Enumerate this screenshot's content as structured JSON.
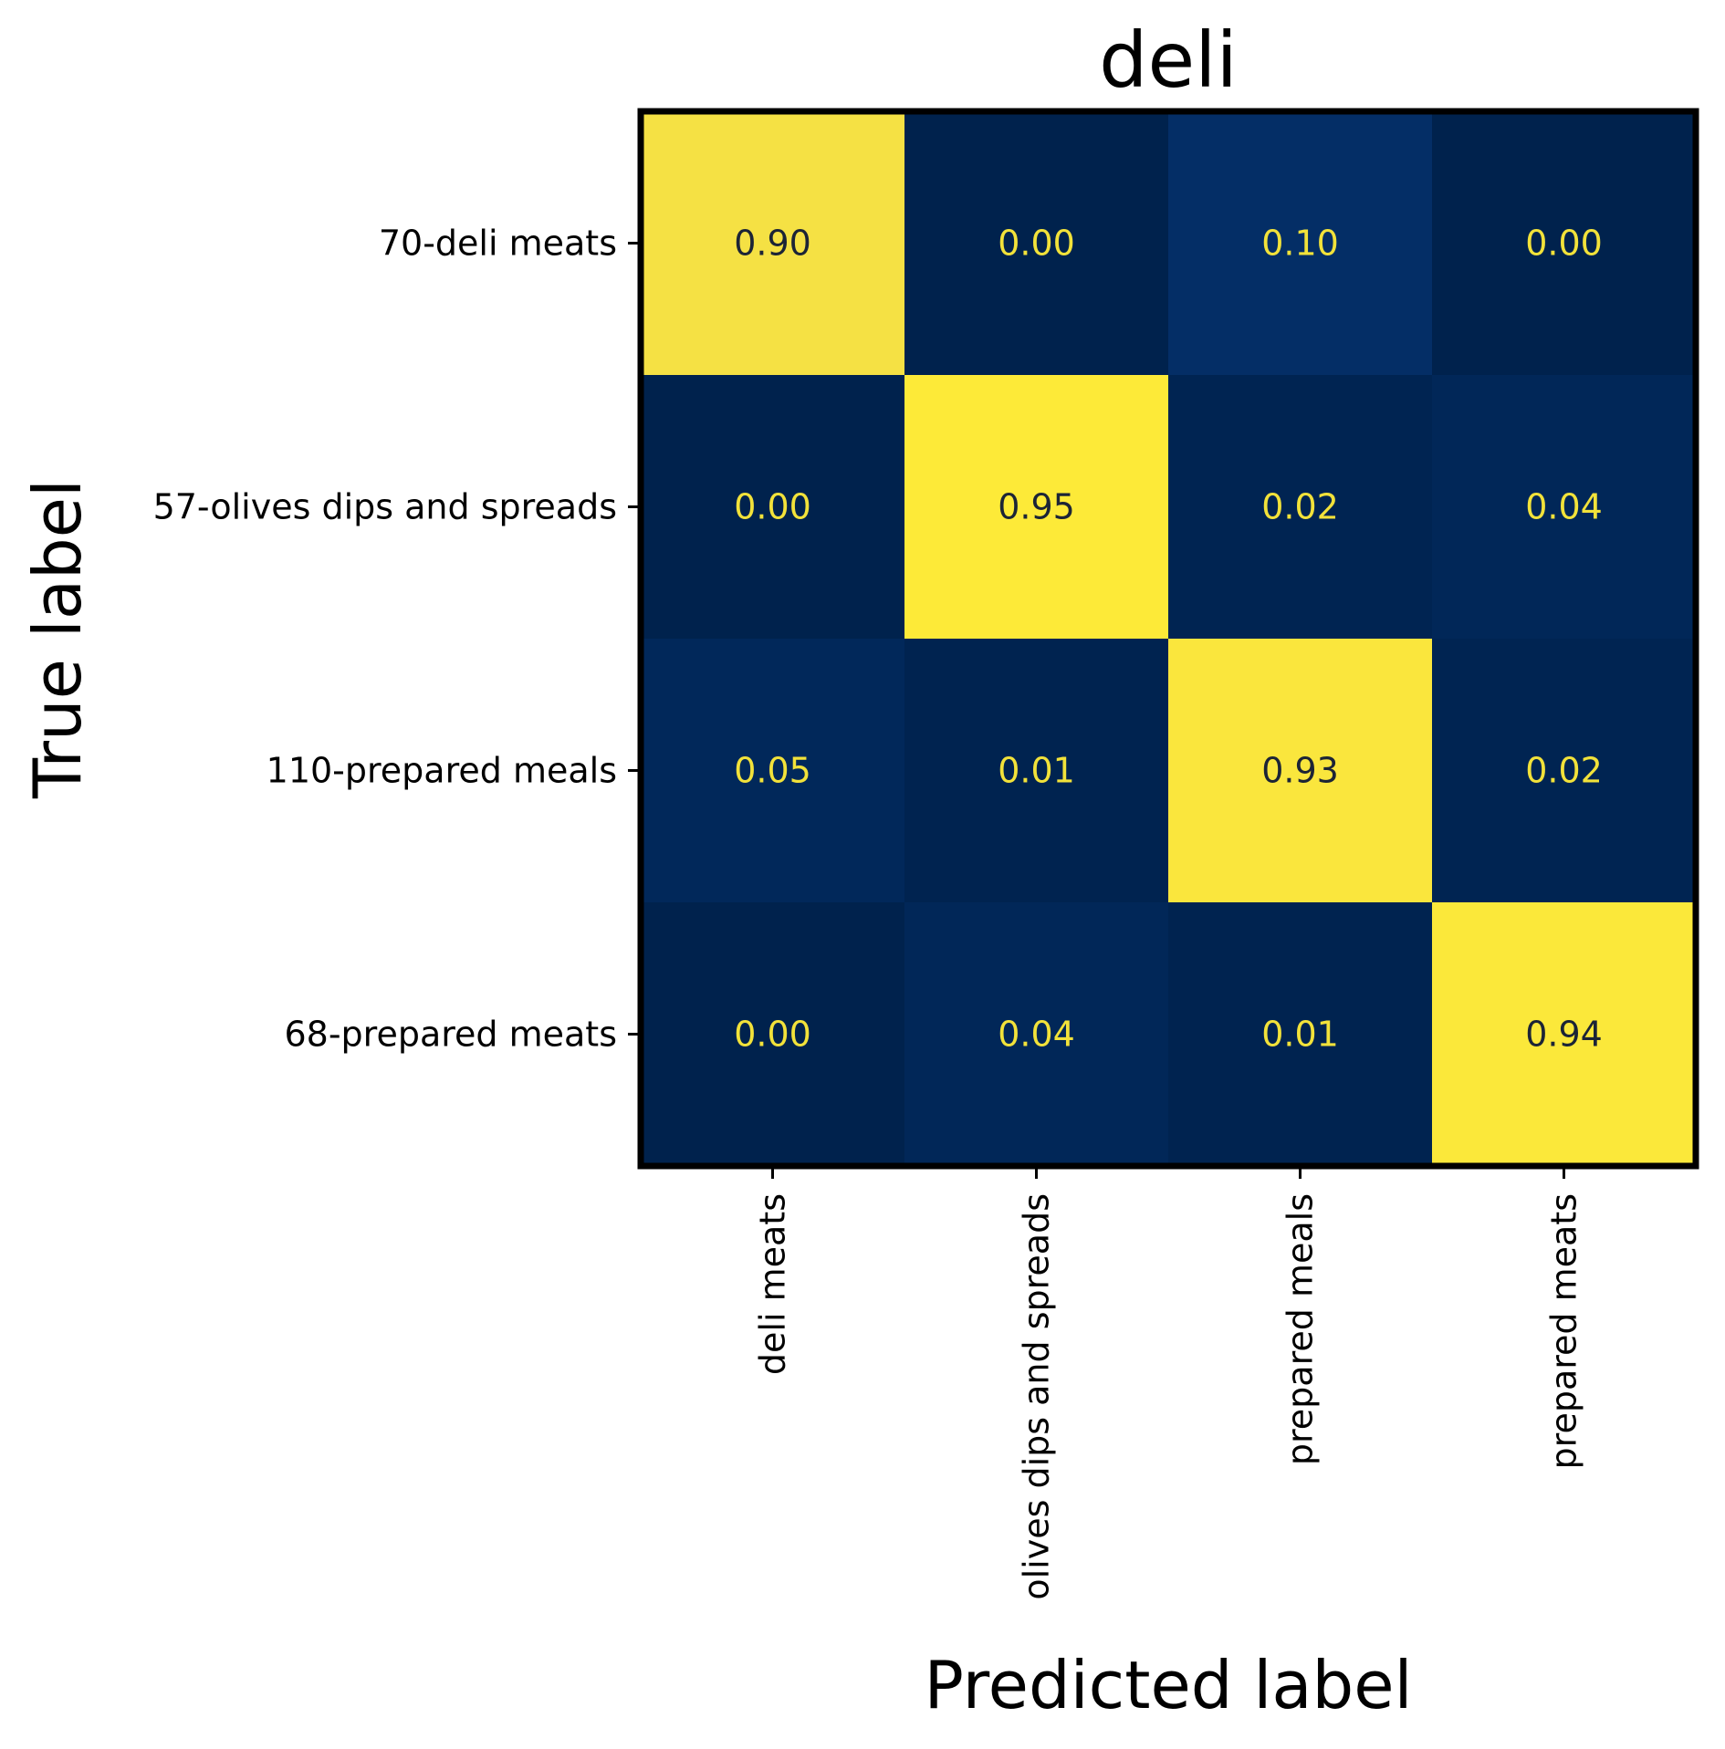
{
  "chart_data": {
    "type": "heatmap",
    "title": "deli",
    "xlabel": "Predicted label",
    "ylabel": "True label",
    "row_labels": [
      "70-deli meats",
      "57-olives dips and spreads",
      "110-prepared meals",
      "68-prepared meats"
    ],
    "col_labels": [
      "deli meats",
      "olives dips and spreads",
      "prepared meals",
      "prepared meats"
    ],
    "values": [
      [
        0.9,
        0.0,
        0.1,
        0.0
      ],
      [
        0.0,
        0.95,
        0.02,
        0.04
      ],
      [
        0.05,
        0.01,
        0.93,
        0.02
      ],
      [
        0.0,
        0.04,
        0.01,
        0.94
      ]
    ],
    "value_format": "0.00",
    "colormap": "cividis",
    "vmin": 0.0,
    "vmax": 0.95,
    "colorbar": false,
    "grid": false
  },
  "colors": {
    "background": "#ffffff",
    "frame": "#000000",
    "text": "#000000",
    "annotation_dark": "#1c2436",
    "annotation_light": "#f2e23a"
  }
}
